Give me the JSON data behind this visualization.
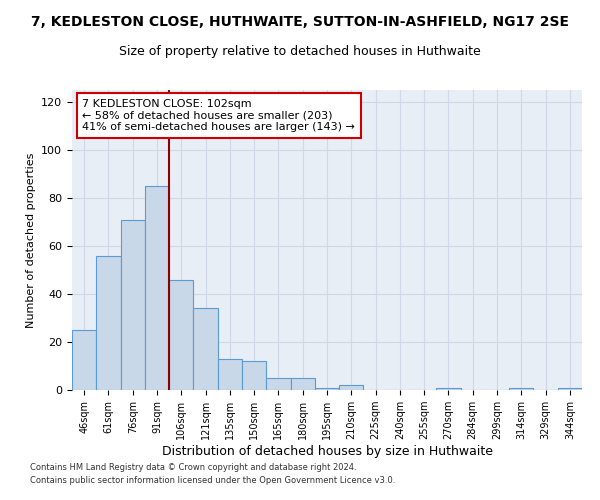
{
  "title": "7, KEDLESTON CLOSE, HUTHWAITE, SUTTON-IN-ASHFIELD, NG17 2SE",
  "subtitle": "Size of property relative to detached houses in Huthwaite",
  "xlabel": "Distribution of detached houses by size in Huthwaite",
  "ylabel": "Number of detached properties",
  "categories": [
    "46sqm",
    "61sqm",
    "76sqm",
    "91sqm",
    "106sqm",
    "121sqm",
    "135sqm",
    "150sqm",
    "165sqm",
    "180sqm",
    "195sqm",
    "210sqm",
    "225sqm",
    "240sqm",
    "255sqm",
    "270sqm",
    "284sqm",
    "299sqm",
    "314sqm",
    "329sqm",
    "344sqm"
  ],
  "values": [
    25,
    56,
    71,
    85,
    46,
    34,
    13,
    12,
    5,
    5,
    1,
    2,
    0,
    0,
    0,
    1,
    0,
    0,
    1,
    0,
    1
  ],
  "bar_color": "#c8d8e8",
  "bar_edge_color": "#5b9bd5",
  "vline_color": "#8b0000",
  "annotation_text": "7 KEDLESTON CLOSE: 102sqm\n← 58% of detached houses are smaller (203)\n41% of semi-detached houses are larger (143) →",
  "annotation_box_color": "white",
  "annotation_box_edge": "#cc0000",
  "ylim": [
    0,
    125
  ],
  "yticks": [
    0,
    20,
    40,
    60,
    80,
    100,
    120
  ],
  "grid_color": "#d0d8e8",
  "background_color": "#e8eef5",
  "footer_line1": "Contains HM Land Registry data © Crown copyright and database right 2024.",
  "footer_line2": "Contains public sector information licensed under the Open Government Licence v3.0.",
  "title_fontsize": 10,
  "subtitle_fontsize": 9,
  "xlabel_fontsize": 9,
  "ylabel_fontsize": 8,
  "annotation_fontsize": 8,
  "footer_fontsize": 6
}
